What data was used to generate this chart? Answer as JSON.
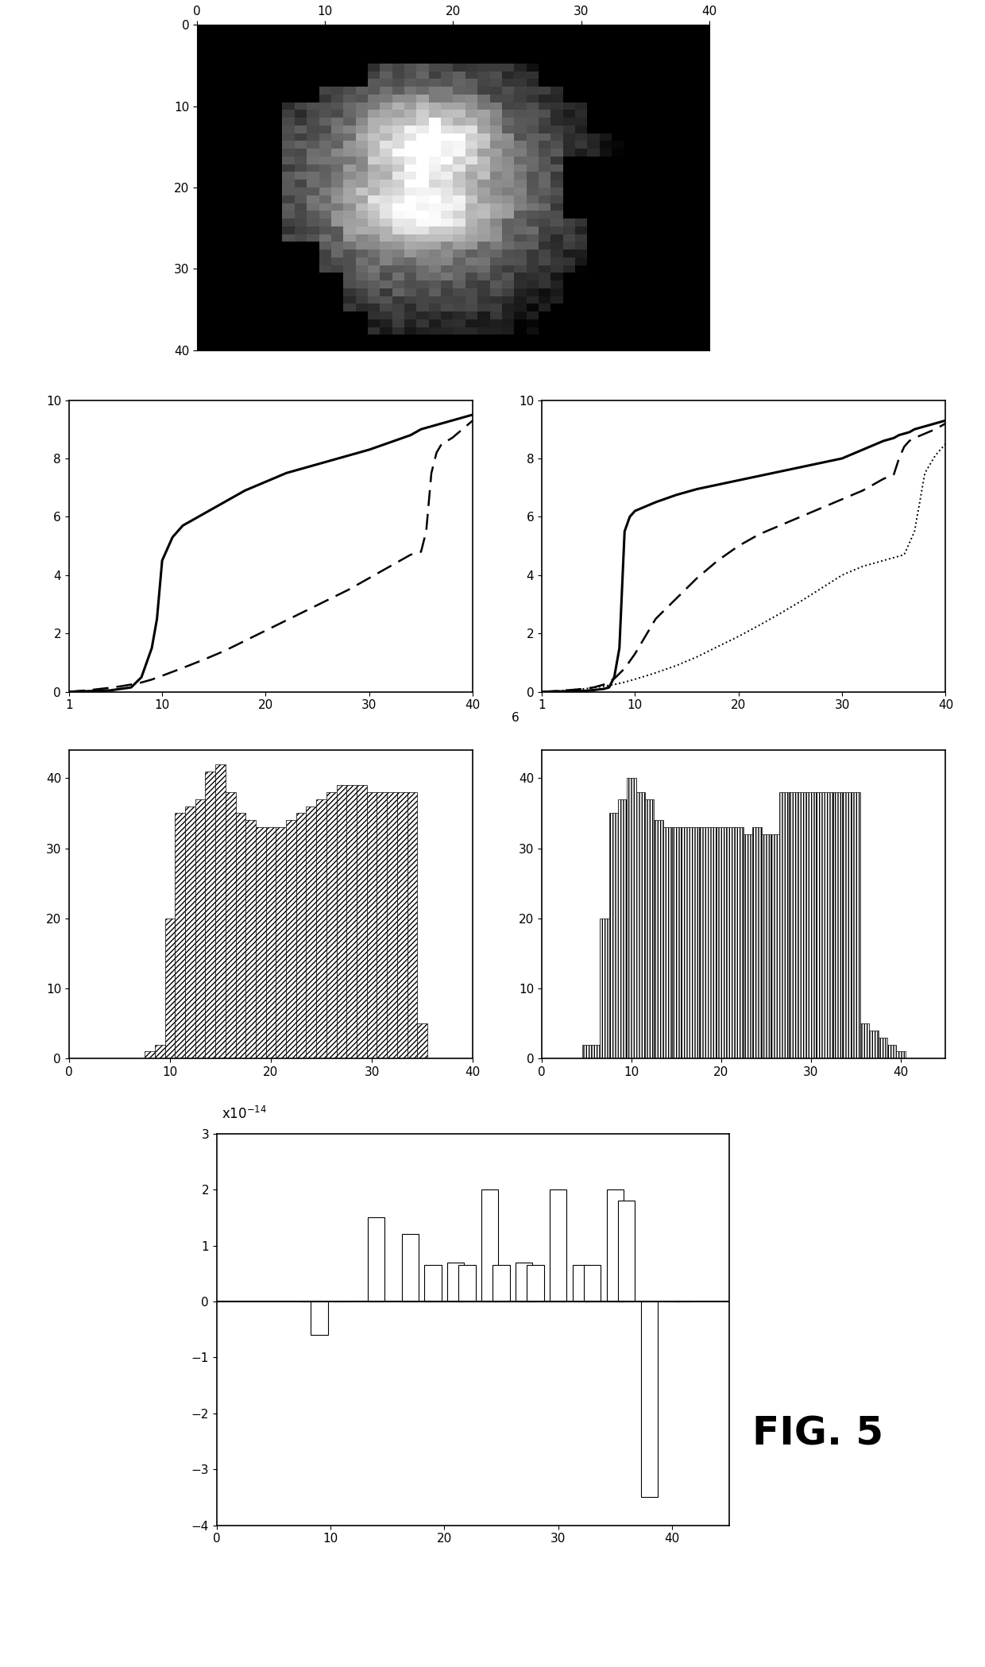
{
  "line_plot1": {
    "solid_x": [
      1,
      5,
      6,
      7,
      8,
      8.5,
      9,
      9.5,
      10,
      11,
      12,
      14,
      16,
      18,
      20,
      22,
      24,
      26,
      28,
      30,
      32,
      34,
      35,
      36,
      37,
      38,
      39,
      40
    ],
    "solid_y": [
      0,
      0.05,
      0.1,
      0.15,
      0.5,
      1.0,
      1.5,
      2.5,
      4.5,
      5.3,
      5.7,
      6.1,
      6.5,
      6.9,
      7.2,
      7.5,
      7.7,
      7.9,
      8.1,
      8.3,
      8.55,
      8.8,
      9.0,
      9.1,
      9.2,
      9.3,
      9.4,
      9.5
    ],
    "dashed_x": [
      1,
      2,
      3,
      4,
      5,
      6,
      7,
      8,
      9,
      10,
      12,
      14,
      16,
      18,
      20,
      22,
      24,
      26,
      28,
      30,
      32,
      33,
      34,
      35,
      35.5,
      36,
      36.5,
      37,
      38,
      39,
      40
    ],
    "dashed_y": [
      0,
      0.03,
      0.06,
      0.1,
      0.14,
      0.19,
      0.25,
      0.32,
      0.42,
      0.55,
      0.82,
      1.1,
      1.4,
      1.75,
      2.1,
      2.45,
      2.8,
      3.15,
      3.5,
      3.9,
      4.3,
      4.5,
      4.7,
      4.8,
      5.5,
      7.5,
      8.2,
      8.5,
      8.7,
      9.0,
      9.3
    ],
    "xlim": [
      1,
      40
    ],
    "ylim": [
      0,
      10
    ]
  },
  "line_plot2": {
    "solid_x": [
      1,
      5,
      6,
      7,
      7.5,
      8,
      8.5,
      9,
      9.5,
      10,
      11,
      12,
      14,
      16,
      18,
      20,
      22,
      24,
      26,
      28,
      30,
      32,
      34,
      35,
      35.5,
      36,
      36.5,
      37,
      38,
      39,
      40
    ],
    "solid_y": [
      0,
      0.03,
      0.06,
      0.1,
      0.15,
      0.5,
      1.5,
      5.5,
      6.0,
      6.2,
      6.35,
      6.5,
      6.75,
      6.95,
      7.1,
      7.25,
      7.4,
      7.55,
      7.7,
      7.85,
      8.0,
      8.3,
      8.6,
      8.7,
      8.8,
      8.85,
      8.9,
      9.0,
      9.1,
      9.2,
      9.3
    ],
    "dashed_x": [
      1,
      2,
      3,
      4,
      5,
      6,
      7,
      8,
      9,
      10,
      11,
      12,
      14,
      16,
      18,
      20,
      22,
      24,
      26,
      28,
      30,
      32,
      33,
      34,
      35,
      35.5,
      36,
      36.5,
      37,
      38,
      39,
      40
    ],
    "dashed_y": [
      0,
      0.02,
      0.04,
      0.07,
      0.1,
      0.15,
      0.25,
      0.45,
      0.8,
      1.3,
      1.9,
      2.5,
      3.2,
      3.9,
      4.5,
      5.0,
      5.4,
      5.7,
      6.0,
      6.3,
      6.6,
      6.9,
      7.1,
      7.3,
      7.45,
      8.0,
      8.4,
      8.6,
      8.7,
      8.85,
      9.0,
      9.2
    ],
    "dotted_x": [
      1,
      2,
      3,
      4,
      5,
      6,
      7,
      8,
      9,
      10,
      12,
      14,
      16,
      18,
      20,
      22,
      24,
      26,
      28,
      30,
      32,
      34,
      36,
      37,
      38,
      39,
      40
    ],
    "dotted_y": [
      0,
      0.02,
      0.04,
      0.07,
      0.1,
      0.14,
      0.19,
      0.25,
      0.33,
      0.43,
      0.65,
      0.9,
      1.2,
      1.55,
      1.9,
      2.28,
      2.68,
      3.1,
      3.55,
      4.0,
      4.3,
      4.5,
      4.7,
      5.5,
      7.5,
      8.1,
      8.5
    ],
    "xlim": [
      1,
      40
    ],
    "ylim": [
      0,
      10
    ]
  },
  "bar_left": {
    "x": [
      6,
      7,
      8,
      9,
      10,
      11,
      12,
      13,
      14,
      15,
      16,
      17,
      18,
      19,
      20,
      21,
      22,
      23,
      24,
      25,
      26,
      27,
      28,
      29,
      30,
      31,
      32,
      33,
      34,
      35
    ],
    "heights": [
      0,
      0,
      1,
      2,
      20,
      35,
      36,
      37,
      41,
      42,
      38,
      35,
      34,
      33,
      33,
      33,
      34,
      35,
      36,
      37,
      38,
      39,
      39,
      39,
      38,
      38,
      38,
      38,
      38,
      5
    ],
    "xlim": [
      0,
      40
    ],
    "ylim": [
      0,
      44
    ],
    "yticks": [
      0,
      10,
      20,
      30,
      40
    ],
    "xticks": [
      0,
      10,
      20,
      30,
      40
    ]
  },
  "bar_right": {
    "x": [
      5,
      6,
      7,
      8,
      9,
      10,
      11,
      12,
      13,
      14,
      15,
      16,
      17,
      18,
      19,
      20,
      21,
      22,
      23,
      24,
      25,
      26,
      27,
      28,
      29,
      30,
      31,
      32,
      33,
      34,
      35,
      36,
      37,
      38,
      39,
      40,
      41
    ],
    "heights": [
      2,
      2,
      20,
      35,
      37,
      40,
      38,
      37,
      34,
      33,
      33,
      33,
      33,
      33,
      33,
      33,
      33,
      33,
      32,
      33,
      32,
      32,
      38,
      38,
      38,
      38,
      38,
      38,
      38,
      38,
      38,
      5,
      4,
      3,
      2,
      1,
      0
    ],
    "xlim": [
      0,
      45
    ],
    "ylim": [
      0,
      44
    ],
    "yticks": [
      0,
      10,
      20,
      30,
      40
    ],
    "xticks": [
      0,
      10,
      20,
      30,
      40
    ]
  },
  "bar_bottom": {
    "x": [
      8,
      10,
      14,
      16,
      18,
      20,
      22,
      23,
      24,
      25,
      27,
      28,
      29,
      30,
      32,
      33,
      34,
      36,
      37,
      38,
      40
    ],
    "heights": [
      0.0,
      -0.6,
      0.0,
      1.5,
      1.2,
      0.65,
      0.65,
      0.7,
      0.65,
      2.0,
      0.7,
      0.65,
      0.7,
      0.65,
      2.0,
      0.65,
      0.65,
      2.0,
      1.8,
      -3.5,
      0.0
    ],
    "xlim": [
      0,
      45
    ],
    "ylim": [
      -4,
      3
    ],
    "yticks": [
      -4,
      -3,
      -2,
      -1,
      0,
      1,
      2,
      3
    ],
    "xticks": [
      0,
      10,
      20,
      30,
      40
    ]
  },
  "fig5_label": "FIG. 5"
}
